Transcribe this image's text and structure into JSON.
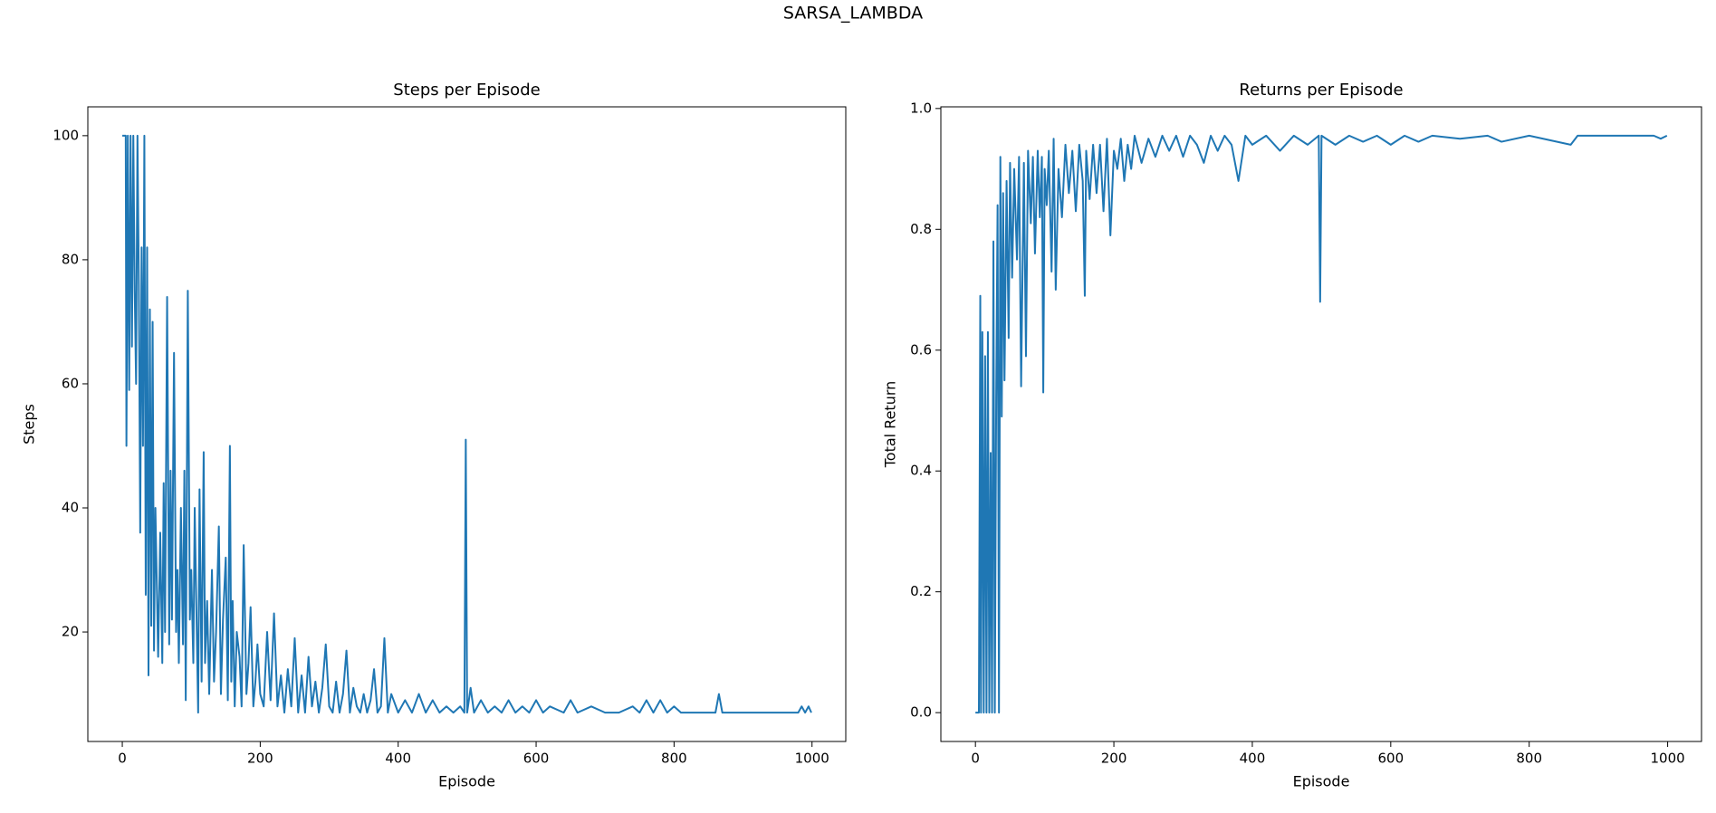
{
  "title": "SARSA_LAMBDA",
  "chart_data": [
    {
      "type": "line",
      "title": "Steps per Episode",
      "xlabel": "Episode",
      "ylabel": "Steps",
      "xlim": [
        -49.95,
        1048.95
      ],
      "ylim": [
        2.35,
        104.65
      ],
      "xticks": [
        0,
        200,
        400,
        600,
        800,
        1000
      ],
      "yticks": [
        20,
        40,
        60,
        80,
        100
      ],
      "series": [
        {
          "name": "Steps",
          "color": "#1f77b4",
          "x": [
            0,
            5,
            6,
            8,
            10,
            12,
            14,
            16,
            18,
            20,
            22,
            24,
            26,
            28,
            30,
            32,
            34,
            36,
            38,
            40,
            42,
            44,
            46,
            48,
            50,
            52,
            55,
            58,
            60,
            62,
            65,
            68,
            70,
            72,
            75,
            78,
            80,
            82,
            85,
            88,
            90,
            92,
            95,
            98,
            100,
            103,
            105,
            108,
            110,
            112,
            115,
            118,
            120,
            123,
            126,
            130,
            133,
            136,
            140,
            143,
            146,
            150,
            153,
            156,
            158,
            160,
            163,
            166,
            170,
            173,
            176,
            180,
            183,
            186,
            190,
            193,
            196,
            200,
            205,
            210,
            215,
            220,
            225,
            230,
            235,
            240,
            245,
            250,
            255,
            260,
            265,
            270,
            275,
            280,
            285,
            290,
            295,
            300,
            305,
            310,
            315,
            320,
            325,
            330,
            335,
            340,
            345,
            350,
            355,
            360,
            365,
            370,
            375,
            380,
            385,
            390,
            400,
            410,
            420,
            430,
            440,
            450,
            460,
            470,
            480,
            490,
            496,
            498,
            500,
            505,
            510,
            520,
            530,
            540,
            550,
            560,
            570,
            580,
            590,
            600,
            610,
            620,
            640,
            650,
            660,
            680,
            700,
            720,
            740,
            750,
            760,
            770,
            780,
            790,
            800,
            810,
            860,
            865,
            870,
            900,
            980,
            985,
            990,
            995,
            999
          ],
          "values": [
            100,
            100,
            50,
            100,
            59,
            100,
            66,
            100,
            75,
            60,
            100,
            76,
            36,
            82,
            50,
            100,
            26,
            82,
            13,
            72,
            21,
            70,
            17,
            40,
            28,
            16,
            36,
            15,
            44,
            20,
            74,
            18,
            46,
            22,
            65,
            20,
            30,
            15,
            40,
            18,
            46,
            9,
            75,
            22,
            30,
            15,
            40,
            20,
            7,
            43,
            12,
            49,
            15,
            25,
            10,
            30,
            12,
            20,
            37,
            10,
            22,
            32,
            9,
            50,
            12,
            25,
            8,
            20,
            16,
            8,
            34,
            10,
            15,
            24,
            8,
            12,
            18,
            10,
            8,
            20,
            9,
            23,
            8,
            13,
            7,
            14,
            8,
            19,
            7,
            13,
            7,
            16,
            8,
            12,
            7,
            11,
            18,
            8,
            7,
            12,
            7,
            10,
            17,
            7,
            11,
            8,
            7,
            10,
            7,
            9,
            14,
            7,
            8,
            19,
            7,
            10,
            7,
            9,
            7,
            10,
            7,
            9,
            7,
            8,
            7,
            8,
            7,
            51,
            7,
            11,
            7,
            9,
            7,
            8,
            7,
            9,
            7,
            8,
            7,
            9,
            7,
            8,
            7,
            9,
            7,
            8,
            7,
            7,
            8,
            7,
            9,
            7,
            9,
            7,
            8,
            7,
            7,
            10,
            7,
            7,
            7,
            8,
            7,
            8,
            7
          ]
        }
      ]
    },
    {
      "type": "line",
      "title": "Returns per Episode",
      "xlabel": "Episode",
      "ylabel": "Total Return",
      "xlim": [
        -49.95,
        1048.95
      ],
      "ylim": [
        -0.04775,
        1.00275
      ],
      "xticks": [
        0,
        200,
        400,
        600,
        800,
        1000
      ],
      "yticks": [
        {
          "value": 0,
          "label": "0.0"
        },
        0.2,
        0.4,
        0.6,
        0.8,
        {
          "value": 1,
          "label": "1.0"
        }
      ],
      "series": [
        {
          "name": "Total Return",
          "color": "#1f77b4",
          "x": [
            0,
            5,
            7,
            8,
            10,
            12,
            14,
            16,
            18,
            20,
            22,
            24,
            26,
            28,
            30,
            32,
            34,
            36,
            38,
            40,
            42,
            45,
            48,
            50,
            53,
            56,
            60,
            63,
            66,
            70,
            73,
            76,
            80,
            83,
            86,
            90,
            93,
            96,
            98,
            100,
            103,
            106,
            110,
            113,
            116,
            120,
            125,
            130,
            135,
            140,
            145,
            150,
            155,
            158,
            160,
            165,
            170,
            175,
            180,
            185,
            190,
            195,
            200,
            205,
            210,
            215,
            220,
            225,
            230,
            240,
            250,
            260,
            270,
            280,
            290,
            300,
            310,
            320,
            330,
            340,
            350,
            360,
            370,
            380,
            390,
            400,
            420,
            440,
            460,
            480,
            496,
            498,
            500,
            520,
            540,
            560,
            580,
            600,
            620,
            640,
            660,
            700,
            740,
            760,
            800,
            860,
            870,
            980,
            990,
            999
          ],
          "values": [
            0,
            0,
            0.69,
            0,
            0.63,
            0,
            0.59,
            0,
            0.63,
            0,
            0.43,
            0,
            0.78,
            0,
            0.52,
            0.84,
            0,
            0.92,
            0.49,
            0.86,
            0.55,
            0.88,
            0.62,
            0.91,
            0.72,
            0.9,
            0.75,
            0.92,
            0.54,
            0.91,
            0.59,
            0.93,
            0.81,
            0.92,
            0.76,
            0.93,
            0.82,
            0.92,
            0.53,
            0.9,
            0.84,
            0.93,
            0.73,
            0.95,
            0.7,
            0.9,
            0.82,
            0.94,
            0.86,
            0.93,
            0.83,
            0.94,
            0.88,
            0.69,
            0.93,
            0.85,
            0.94,
            0.86,
            0.94,
            0.83,
            0.95,
            0.79,
            0.93,
            0.9,
            0.95,
            0.88,
            0.94,
            0.9,
            0.955,
            0.91,
            0.95,
            0.92,
            0.955,
            0.93,
            0.955,
            0.92,
            0.955,
            0.94,
            0.91,
            0.955,
            0.93,
            0.955,
            0.94,
            0.88,
            0.955,
            0.94,
            0.955,
            0.93,
            0.955,
            0.94,
            0.955,
            0.68,
            0.955,
            0.94,
            0.955,
            0.945,
            0.955,
            0.94,
            0.955,
            0.945,
            0.955,
            0.95,
            0.955,
            0.945,
            0.955,
            0.94,
            0.955,
            0.955,
            0.95,
            0.955
          ]
        }
      ]
    }
  ]
}
